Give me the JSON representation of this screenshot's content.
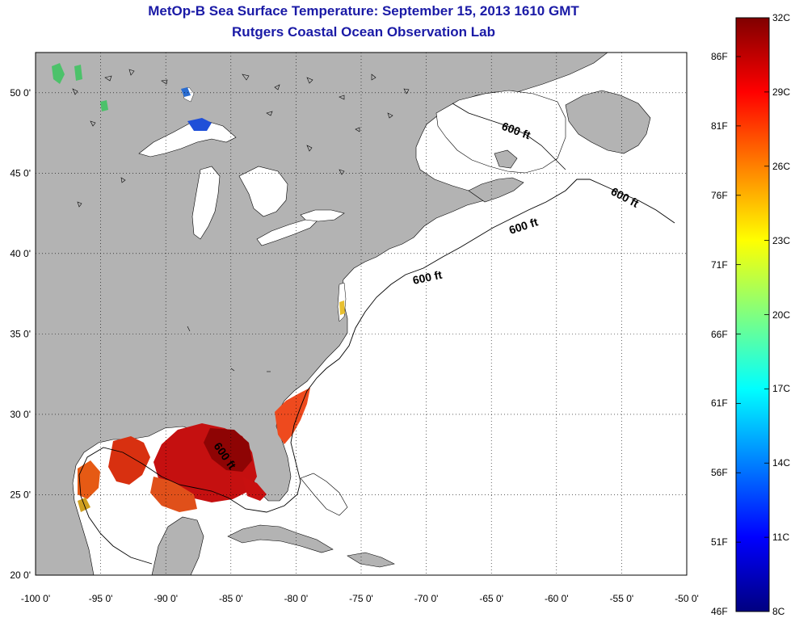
{
  "header": {
    "title": "MetOp-B Sea Surface Temperature:  September 15, 2013 1610 GMT",
    "subtitle": "Rutgers Coastal Ocean Observation Lab"
  },
  "map": {
    "lon_range": [
      -100,
      -50
    ],
    "lat_range": [
      20,
      52.5
    ],
    "lon_ticks": [
      {
        "value": -100,
        "label": "-100 0'"
      },
      {
        "value": -95,
        "label": "-95 0'"
      },
      {
        "value": -90,
        "label": "-90 0'"
      },
      {
        "value": -85,
        "label": "-85 0'"
      },
      {
        "value": -80,
        "label": "-80 0'"
      },
      {
        "value": -75,
        "label": "-75 0'"
      },
      {
        "value": -70,
        "label": "-70 0'"
      },
      {
        "value": -65,
        "label": "-65 0'"
      },
      {
        "value": -60,
        "label": "-60 0'"
      },
      {
        "value": -55,
        "label": "-55 0'"
      },
      {
        "value": -50,
        "label": "-50 0'"
      }
    ],
    "lat_ticks": [
      {
        "value": 50,
        "label": "50 0'"
      },
      {
        "value": 45,
        "label": "45 0'"
      },
      {
        "value": 40,
        "label": "40 0'"
      },
      {
        "value": 35,
        "label": "35 0'"
      },
      {
        "value": 30,
        "label": "30 0'"
      },
      {
        "value": 25,
        "label": "25 0'"
      },
      {
        "value": 20,
        "label": "20 0'"
      }
    ],
    "grid": "dotted",
    "land_color": "#b3b3b3",
    "water_color": "#ffffff",
    "isobath_labels": [
      "600 ft",
      "600 ft",
      "600 ft",
      "600 ft",
      "600 ft"
    ]
  },
  "colorbar": {
    "colors": [
      "#000080",
      "#0000ff",
      "#0080ff",
      "#00ffff",
      "#80ff80",
      "#ffff00",
      "#ff8000",
      "#ff0000",
      "#800000"
    ],
    "celsius_labels": [
      "32C",
      "29C",
      "26C",
      "23C",
      "20C",
      "17C",
      "14C",
      "11C",
      "8C"
    ],
    "fahrenheit_labels": [
      "86F",
      "81F",
      "76F",
      "71F",
      "66F",
      "61F",
      "56F",
      "51F",
      "46F"
    ]
  }
}
